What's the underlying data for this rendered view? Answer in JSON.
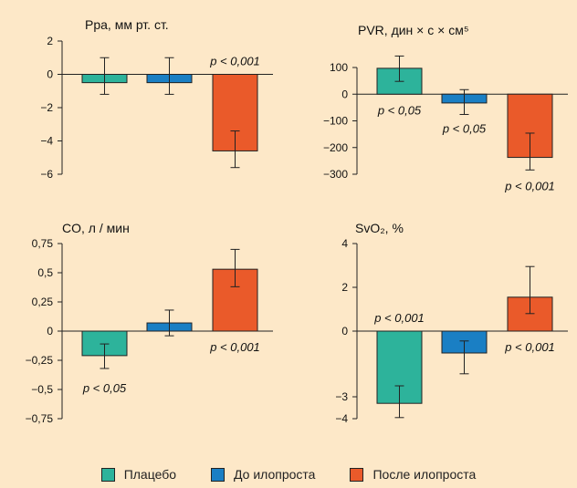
{
  "colors": {
    "background": "#fde8c8",
    "placebo": "#2db39b",
    "before": "#1a7fc4",
    "after": "#ea5a2a",
    "axis": "#222222"
  },
  "legend": {
    "items": [
      {
        "label": "Плацебо",
        "color": "#2db39b"
      },
      {
        "label": "До илопроста",
        "color": "#1a7fc4"
      },
      {
        "label": "После илопроста",
        "color": "#ea5a2a"
      }
    ]
  },
  "chart_data": [
    {
      "type": "bar",
      "title": "Ppa, мм рт. ст.",
      "ylim": [
        -6,
        2
      ],
      "yticks": [
        2,
        0,
        -2,
        -4,
        -6
      ],
      "ytick_labels": [
        "2",
        "0",
        "−2",
        "−4",
        "−6"
      ],
      "series": [
        {
          "value": -0.5,
          "err_low": -1.2,
          "err_high": 1.0,
          "color": "#2db39b",
          "annotation": ""
        },
        {
          "value": -0.5,
          "err_low": -1.2,
          "err_high": 1.0,
          "color": "#1a7fc4",
          "annotation": ""
        },
        {
          "value": -4.6,
          "err_low": -5.6,
          "err_high": -3.4,
          "color": "#ea5a2a",
          "annotation": "p < 0,001"
        }
      ]
    },
    {
      "type": "bar",
      "title": "PVR, дин × с × см⁵",
      "ylim": [
        -300,
        100
      ],
      "yticks": [
        100,
        0,
        -100,
        -200,
        -300
      ],
      "ytick_labels": [
        "100",
        "0",
        "−100",
        "−200",
        "−300"
      ],
      "series": [
        {
          "value": 97,
          "err_low": 48,
          "err_high": 143,
          "color": "#2db39b",
          "annotation": "p < 0,05"
        },
        {
          "value": -33,
          "err_low": -76,
          "err_high": 17,
          "color": "#1a7fc4",
          "annotation": "p < 0,05"
        },
        {
          "value": -237,
          "err_low": -284,
          "err_high": -146,
          "color": "#ea5a2a",
          "annotation": "p < 0,001"
        }
      ]
    },
    {
      "type": "bar",
      "title": "CO, л / мин",
      "ylim": [
        -0.75,
        0.75
      ],
      "yticks": [
        0.75,
        0.5,
        0.25,
        0,
        -0.25,
        -0.5,
        -0.75
      ],
      "ytick_labels": [
        "0,75",
        "0,5",
        "0,25",
        "0",
        "−0,25",
        "−0,5",
        "−0,75"
      ],
      "series": [
        {
          "value": -0.21,
          "err_low": -0.32,
          "err_high": -0.11,
          "color": "#2db39b",
          "annotation": "p < 0,05"
        },
        {
          "value": 0.07,
          "err_low": -0.04,
          "err_high": 0.18,
          "color": "#1a7fc4",
          "annotation": ""
        },
        {
          "value": 0.53,
          "err_low": 0.38,
          "err_high": 0.7,
          "color": "#ea5a2a",
          "annotation": "p < 0,001"
        }
      ]
    },
    {
      "type": "bar",
      "title": "SvO₂, %",
      "ylim": [
        -4,
        4
      ],
      "yticks": [
        4,
        2,
        0,
        -3,
        -4
      ],
      "ytick_labels": [
        "4",
        "2",
        "0",
        "−3",
        "−4"
      ],
      "series": [
        {
          "value": -3.3,
          "err_low": -3.95,
          "err_high": -2.5,
          "color": "#2db39b",
          "annotation": "p < 0,001"
        },
        {
          "value": -1.0,
          "err_low": -1.95,
          "err_high": -0.45,
          "color": "#1a7fc4",
          "annotation": ""
        },
        {
          "value": 1.55,
          "err_low": 0.8,
          "err_high": 2.95,
          "color": "#ea5a2a",
          "annotation": "p < 0,001"
        }
      ]
    }
  ]
}
